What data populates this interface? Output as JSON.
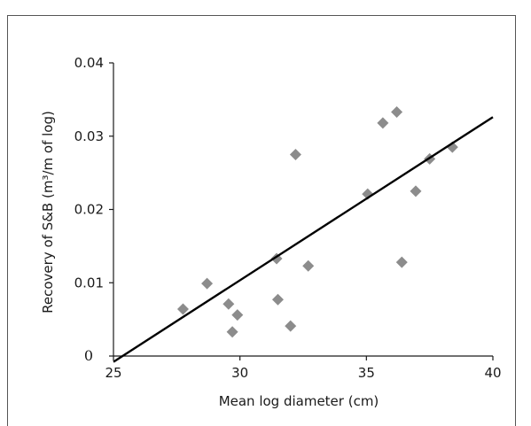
{
  "chart_data": {
    "type": "scatter",
    "title": "",
    "xlabel": "Mean log diameter (cm)",
    "ylabel": "Recovery of S&B (m³/m of log)",
    "xlim": [
      25,
      40
    ],
    "ylim": [
      0,
      0.04
    ],
    "x_ticks": [
      "25",
      "30",
      "35",
      "40"
    ],
    "y_ticks": [
      "0",
      "0.01",
      "0.02",
      "0.03",
      "0.04"
    ],
    "grid": false,
    "legend": "none",
    "marker_color": "#8c8c8c",
    "trendline_color": "#000000",
    "points": [
      {
        "x": 27.75,
        "y": 0.0064
      },
      {
        "x": 28.7,
        "y": 0.0099
      },
      {
        "x": 29.55,
        "y": 0.0071
      },
      {
        "x": 29.7,
        "y": 0.0033
      },
      {
        "x": 29.9,
        "y": 0.0056
      },
      {
        "x": 31.45,
        "y": 0.0133
      },
      {
        "x": 31.5,
        "y": 0.0077
      },
      {
        "x": 32.0,
        "y": 0.0041
      },
      {
        "x": 32.2,
        "y": 0.0275
      },
      {
        "x": 32.7,
        "y": 0.0123
      },
      {
        "x": 35.05,
        "y": 0.0221
      },
      {
        "x": 35.65,
        "y": 0.0318
      },
      {
        "x": 36.2,
        "y": 0.0333
      },
      {
        "x": 36.4,
        "y": 0.0128
      },
      {
        "x": 36.95,
        "y": 0.0225
      },
      {
        "x": 37.5,
        "y": 0.0269
      },
      {
        "x": 38.4,
        "y": 0.0285
      }
    ],
    "trendline": {
      "x": [
        25,
        40
      ],
      "y": [
        -0.0008,
        0.0326
      ]
    }
  }
}
